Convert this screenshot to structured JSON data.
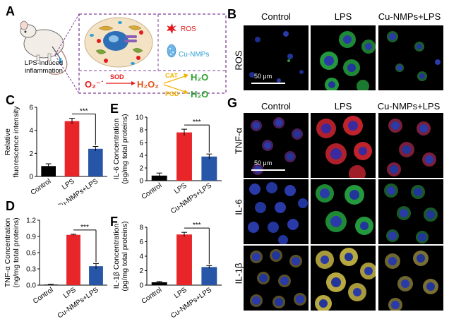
{
  "panel_labels": {
    "a": "A",
    "b": "B",
    "c": "C",
    "d": "D",
    "e": "E",
    "f": "F",
    "g": "G"
  },
  "schematic": {
    "mouse_caption": "LPS-induced inflammation",
    "legend": {
      "ros": "ROS",
      "cu_nmps": "Cu-NMPs"
    },
    "reaction": {
      "superoxide": "O₂⁻˙",
      "sod": "SOD",
      "h2o2": "H₂O₂",
      "cat": "CAT",
      "pod": "POD",
      "h2o_1": "H₂O",
      "h2o_2": "H₂O"
    },
    "colors": {
      "ros": "#e41a1c",
      "cu": "#2e9fd8",
      "h2o2": "#e2561b",
      "cat": "#f0b400",
      "pod": "#f0b400",
      "h2o": "#2ca02c",
      "border": "#7f3f98"
    }
  },
  "panel_b": {
    "columns": [
      "Control",
      "LPS",
      "Cu-NMPs+LPS"
    ],
    "row_label": "ROS",
    "scalebar": "50 μm"
  },
  "panel_g": {
    "columns": [
      "Control",
      "LPS",
      "Cu-NMPs+LPS"
    ],
    "rows": [
      "TNF-α",
      "IL-6",
      "IL-1β"
    ],
    "scalebar": "50 μm"
  },
  "chart_data": [
    {
      "id": "C",
      "type": "bar",
      "categories": [
        "Control",
        "LPS",
        "Cu-NMPs+LPS"
      ],
      "values": [
        0.9,
        4.8,
        2.4
      ],
      "errors": [
        0.2,
        0.25,
        0.2
      ],
      "ylabel": "Relative fluorescence intensity",
      "ylim": [
        0,
        6
      ],
      "yticks": [
        0,
        2,
        4,
        6
      ],
      "significance": "***",
      "colors": [
        "#000000",
        "#e8262a",
        "#2756a8"
      ]
    },
    {
      "id": "D",
      "type": "bar",
      "categories": [
        "Control",
        "LPS",
        "Cu-NMPs+LPS"
      ],
      "values": [
        0.01,
        0.93,
        0.35
      ],
      "errors": [
        0.005,
        0.01,
        0.05
      ],
      "ylabel": "TNF-α Concentration (ng/mg total proteins)",
      "ylim": [
        0,
        1.2
      ],
      "yticks": [
        0.0,
        0.3,
        0.6,
        0.9,
        1.2
      ],
      "significance": "***",
      "colors": [
        "#000000",
        "#e8262a",
        "#2756a8"
      ]
    },
    {
      "id": "E",
      "type": "bar",
      "categories": [
        "Control",
        "LPS",
        "Cu-NMPs+LPS"
      ],
      "values": [
        0.8,
        7.6,
        3.8
      ],
      "errors": [
        0.4,
        0.5,
        0.4
      ],
      "ylabel": "IL-6 Concentration (pg/mg total proteins)",
      "ylim": [
        0,
        10
      ],
      "yticks": [
        0,
        2,
        4,
        6,
        8,
        10
      ],
      "significance": "***",
      "colors": [
        "#000000",
        "#e8262a",
        "#2756a8"
      ]
    },
    {
      "id": "F",
      "type": "bar",
      "categories": [
        "Control",
        "LPS",
        "Cu-NMPs+LPS"
      ],
      "values": [
        0.4,
        7.0,
        2.5
      ],
      "errors": [
        0.1,
        0.3,
        0.2
      ],
      "ylabel": "IL-1β Concentration (pg/mg total proteins)",
      "ylim": [
        0,
        8
      ],
      "yticks": [
        0,
        2,
        4,
        6,
        8
      ],
      "significance": "***",
      "colors": [
        "#000000",
        "#e8262a",
        "#2756a8"
      ]
    }
  ]
}
